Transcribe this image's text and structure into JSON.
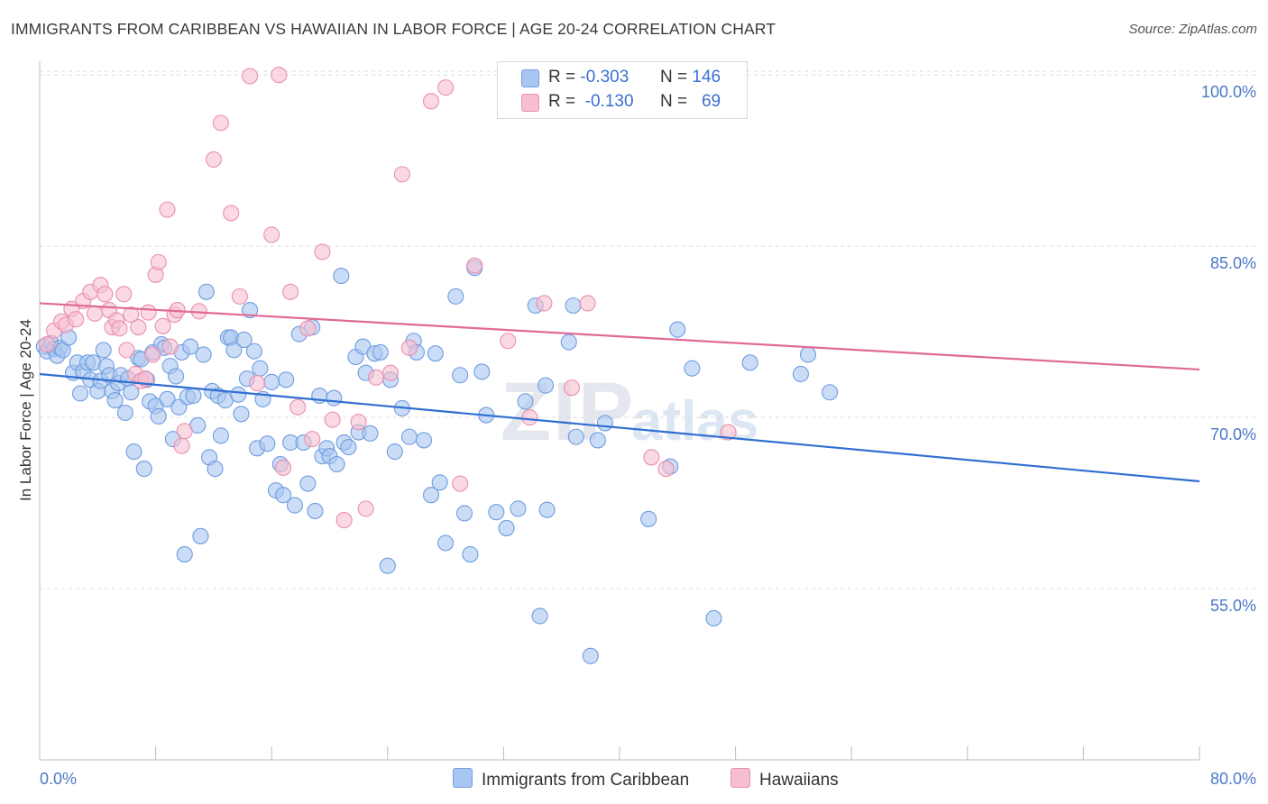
{
  "title": "IMMIGRANTS FROM CARIBBEAN VS HAWAIIAN IN LABOR FORCE | AGE 20-24 CORRELATION CHART",
  "source": "Source: ZipAtlas.com",
  "watermark": {
    "zip": "ZIP",
    "atlas": "atlas"
  },
  "legend": {
    "series1": {
      "r_label": "R =",
      "r_value": "-0.303",
      "n_label": "N =",
      "n_value": "146",
      "color": "#a9c6f0",
      "border": "#6f9ce0"
    },
    "series2": {
      "r_label": "R =",
      "r_value": "-0.130",
      "n_label": "N =",
      "n_value": "69",
      "color": "#f6bfd0",
      "border": "#ea8fae"
    }
  },
  "bottom_legend": {
    "series1": "Immigrants from Caribbean",
    "series2": "Hawaiians"
  },
  "chart_data": {
    "type": "scatter",
    "title": "IMMIGRANTS FROM CARIBBEAN VS HAWAIIAN IN LABOR FORCE | AGE 20-24 CORRELATION CHART",
    "xlabel": "",
    "ylabel": "In Labor Force | Age 20-24",
    "xlim": [
      0,
      80
    ],
    "ylim": [
      40,
      101.2
    ],
    "x_tick_labels": [
      "0.0%",
      "80.0%"
    ],
    "y_ticks": [
      55,
      70,
      85,
      100
    ],
    "y_tick_labels": [
      "55.0%",
      "70.0%",
      "85.0%",
      "100.0%"
    ],
    "grid": true,
    "series": [
      {
        "name": "Immigrants from Caribbean",
        "color": "#6f9ce0",
        "fill": "#a9c6f0",
        "line_color": "#2f6fd0",
        "trend": [
          [
            0,
            73.8
          ],
          [
            80,
            64.4
          ]
        ],
        "points": [
          [
            0.3,
            76.2
          ],
          [
            0.5,
            75.8
          ],
          [
            0.8,
            76.5
          ],
          [
            1.0,
            76.0
          ],
          [
            1.2,
            75.4
          ],
          [
            1.4,
            76.1
          ],
          [
            1.6,
            75.9
          ],
          [
            2.0,
            77.0
          ],
          [
            2.3,
            73.9
          ],
          [
            2.6,
            74.8
          ],
          [
            2.8,
            72.1
          ],
          [
            3.0,
            74.0
          ],
          [
            3.3,
            74.8
          ],
          [
            3.5,
            73.3
          ],
          [
            3.7,
            74.8
          ],
          [
            4.0,
            72.3
          ],
          [
            4.2,
            73.2
          ],
          [
            4.4,
            75.9
          ],
          [
            4.6,
            74.5
          ],
          [
            4.8,
            73.7
          ],
          [
            5.0,
            72.3
          ],
          [
            5.2,
            71.5
          ],
          [
            5.4,
            73.0
          ],
          [
            5.6,
            73.7
          ],
          [
            5.9,
            70.4
          ],
          [
            6.1,
            73.4
          ],
          [
            6.3,
            72.2
          ],
          [
            6.5,
            67.0
          ],
          [
            6.8,
            75.2
          ],
          [
            7.0,
            75.1
          ],
          [
            7.2,
            65.5
          ],
          [
            7.4,
            73.3
          ],
          [
            7.6,
            71.4
          ],
          [
            7.8,
            75.7
          ],
          [
            8.0,
            71.0
          ],
          [
            8.2,
            70.1
          ],
          [
            8.4,
            76.4
          ],
          [
            8.6,
            76.1
          ],
          [
            8.8,
            71.6
          ],
          [
            9.0,
            74.5
          ],
          [
            9.2,
            68.1
          ],
          [
            9.4,
            73.6
          ],
          [
            9.6,
            70.9
          ],
          [
            9.8,
            75.7
          ],
          [
            10.0,
            58.0
          ],
          [
            10.2,
            71.8
          ],
          [
            10.4,
            76.2
          ],
          [
            10.6,
            71.9
          ],
          [
            10.9,
            69.3
          ],
          [
            11.1,
            59.6
          ],
          [
            11.3,
            75.5
          ],
          [
            11.5,
            81.0
          ],
          [
            11.7,
            66.5
          ],
          [
            11.9,
            72.3
          ],
          [
            12.1,
            65.5
          ],
          [
            12.3,
            71.9
          ],
          [
            12.5,
            68.4
          ],
          [
            12.8,
            71.5
          ],
          [
            13.0,
            77.0
          ],
          [
            13.2,
            77.0
          ],
          [
            13.4,
            75.9
          ],
          [
            13.7,
            72.0
          ],
          [
            13.9,
            70.3
          ],
          [
            14.1,
            76.8
          ],
          [
            14.3,
            73.4
          ],
          [
            14.5,
            79.4
          ],
          [
            14.8,
            75.8
          ],
          [
            15.0,
            67.3
          ],
          [
            15.2,
            74.3
          ],
          [
            15.4,
            71.6
          ],
          [
            15.7,
            67.7
          ],
          [
            16.0,
            73.1
          ],
          [
            16.3,
            63.6
          ],
          [
            16.6,
            65.9
          ],
          [
            16.8,
            63.2
          ],
          [
            17.0,
            73.3
          ],
          [
            17.3,
            67.8
          ],
          [
            17.6,
            62.3
          ],
          [
            17.9,
            77.3
          ],
          [
            18.2,
            67.8
          ],
          [
            18.5,
            64.2
          ],
          [
            18.8,
            77.9
          ],
          [
            19.0,
            61.8
          ],
          [
            19.3,
            71.9
          ],
          [
            19.5,
            66.6
          ],
          [
            19.8,
            67.3
          ],
          [
            20.0,
            66.6
          ],
          [
            20.3,
            71.7
          ],
          [
            20.5,
            65.9
          ],
          [
            20.8,
            82.4
          ],
          [
            21.0,
            67.8
          ],
          [
            21.3,
            67.4
          ],
          [
            21.8,
            75.3
          ],
          [
            22.0,
            68.7
          ],
          [
            22.3,
            76.2
          ],
          [
            22.5,
            73.9
          ],
          [
            22.8,
            68.6
          ],
          [
            23.1,
            75.6
          ],
          [
            23.5,
            75.7
          ],
          [
            24.0,
            57.0
          ],
          [
            24.2,
            73.3
          ],
          [
            24.5,
            67.0
          ],
          [
            25.0,
            70.8
          ],
          [
            25.5,
            68.3
          ],
          [
            25.8,
            76.7
          ],
          [
            26.0,
            75.7
          ],
          [
            26.5,
            68.0
          ],
          [
            27.0,
            63.2
          ],
          [
            27.3,
            75.6
          ],
          [
            27.6,
            64.3
          ],
          [
            28.0,
            59.0
          ],
          [
            28.7,
            80.6
          ],
          [
            29.0,
            73.7
          ],
          [
            29.3,
            61.6
          ],
          [
            29.7,
            58.0
          ],
          [
            30.0,
            83.1
          ],
          [
            30.5,
            74.0
          ],
          [
            30.8,
            70.2
          ],
          [
            31.5,
            61.7
          ],
          [
            32.2,
            60.3
          ],
          [
            33.0,
            62.0
          ],
          [
            33.5,
            71.4
          ],
          [
            34.2,
            79.8
          ],
          [
            34.5,
            52.6
          ],
          [
            34.9,
            72.8
          ],
          [
            35.0,
            61.9
          ],
          [
            36.5,
            76.6
          ],
          [
            36.8,
            79.8
          ],
          [
            37.0,
            68.3
          ],
          [
            38.0,
            49.1
          ],
          [
            38.5,
            68.0
          ],
          [
            39.0,
            69.5
          ],
          [
            42.0,
            61.1
          ],
          [
            43.5,
            65.7
          ],
          [
            44.0,
            77.7
          ],
          [
            45.0,
            74.3
          ],
          [
            46.5,
            52.4
          ],
          [
            49.0,
            74.8
          ],
          [
            52.5,
            73.8
          ],
          [
            53.0,
            75.5
          ],
          [
            54.5,
            72.2
          ]
        ]
      },
      {
        "name": "Hawaiians",
        "color": "#ea8fae",
        "fill": "#f6bfd0",
        "line_color": "#e06a95",
        "trend": [
          [
            0,
            80.0
          ],
          [
            80,
            74.2
          ]
        ],
        "points": [
          [
            0.5,
            76.4
          ],
          [
            1.0,
            77.6
          ],
          [
            1.5,
            78.4
          ],
          [
            1.8,
            78.1
          ],
          [
            2.2,
            79.5
          ],
          [
            2.5,
            78.6
          ],
          [
            3.0,
            80.2
          ],
          [
            3.5,
            81.0
          ],
          [
            3.8,
            79.1
          ],
          [
            4.2,
            81.6
          ],
          [
            4.5,
            80.8
          ],
          [
            4.8,
            79.4
          ],
          [
            5.0,
            77.9
          ],
          [
            5.3,
            78.5
          ],
          [
            5.5,
            77.8
          ],
          [
            5.8,
            80.8
          ],
          [
            6.0,
            75.9
          ],
          [
            6.3,
            79.0
          ],
          [
            6.6,
            73.8
          ],
          [
            6.8,
            77.9
          ],
          [
            7.0,
            73.2
          ],
          [
            7.3,
            73.4
          ],
          [
            7.5,
            79.2
          ],
          [
            7.8,
            75.5
          ],
          [
            8.0,
            82.5
          ],
          [
            8.2,
            83.6
          ],
          [
            8.5,
            78.0
          ],
          [
            8.8,
            88.2
          ],
          [
            9.0,
            76.2
          ],
          [
            9.3,
            79.0
          ],
          [
            9.5,
            79.4
          ],
          [
            9.8,
            67.5
          ],
          [
            10.0,
            68.8
          ],
          [
            11.0,
            79.3
          ],
          [
            12.0,
            92.6
          ],
          [
            12.5,
            95.8
          ],
          [
            13.2,
            87.9
          ],
          [
            13.8,
            80.6
          ],
          [
            14.5,
            99.9
          ],
          [
            15.0,
            73.0
          ],
          [
            16.0,
            86.0
          ],
          [
            16.5,
            100.0
          ],
          [
            16.8,
            65.6
          ],
          [
            17.3,
            81.0
          ],
          [
            17.8,
            70.9
          ],
          [
            18.5,
            77.8
          ],
          [
            18.8,
            68.1
          ],
          [
            19.5,
            84.5
          ],
          [
            20.2,
            69.8
          ],
          [
            21.0,
            61.0
          ],
          [
            22.0,
            69.6
          ],
          [
            22.5,
            62.0
          ],
          [
            23.2,
            73.5
          ],
          [
            24.2,
            73.9
          ],
          [
            25.0,
            91.3
          ],
          [
            25.5,
            76.1
          ],
          [
            27.0,
            97.7
          ],
          [
            28.0,
            98.9
          ],
          [
            29.0,
            64.2
          ],
          [
            30.0,
            83.3
          ],
          [
            32.3,
            76.7
          ],
          [
            33.8,
            70.0
          ],
          [
            34.8,
            80.0
          ],
          [
            36.7,
            72.6
          ],
          [
            37.8,
            80.0
          ],
          [
            42.2,
            66.5
          ],
          [
            43.2,
            65.5
          ],
          [
            44.0,
            100.0
          ],
          [
            47.5,
            68.7
          ]
        ]
      }
    ]
  }
}
